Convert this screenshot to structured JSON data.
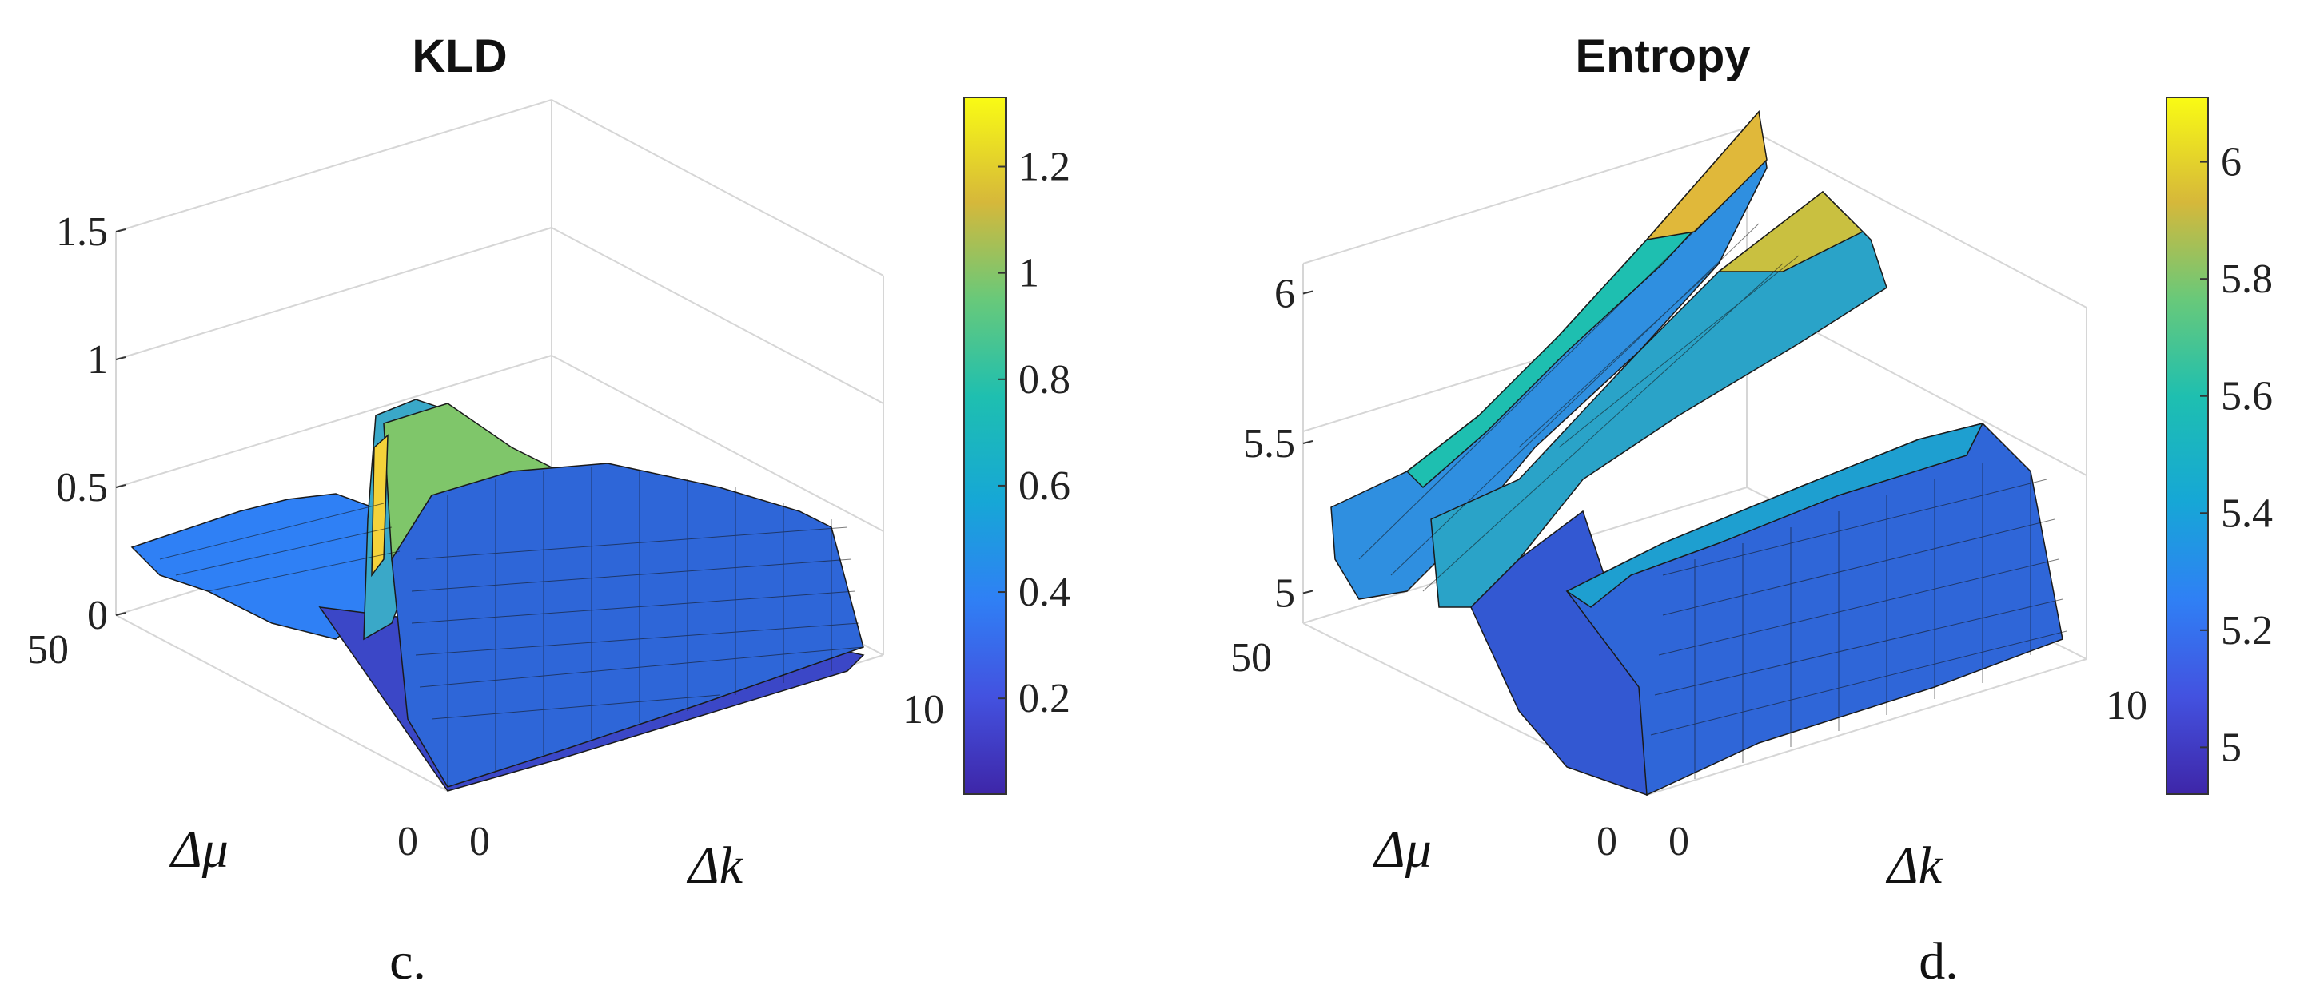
{
  "chart_data": [
    {
      "type": "surface",
      "title": "KLD",
      "xlabel": "Δk",
      "ylabel": "Δμ",
      "zlim": [
        0,
        1.5
      ],
      "z_ticks": [
        "0",
        "0.5",
        "1",
        "1.5"
      ],
      "x_ticks": [
        "0",
        "10"
      ],
      "y_ticks": [
        "0",
        "50"
      ],
      "colorbar_ticks": [
        "0.2",
        "0.4",
        "0.6",
        "0.8",
        "1",
        "1.2"
      ],
      "colorbar_range": [
        0.02,
        1.33
      ],
      "colormap": "parula",
      "grid": true,
      "caption": "c."
    },
    {
      "type": "surface",
      "title": "Entropy",
      "xlabel": "Δk",
      "ylabel": "Δμ",
      "zlim": [
        4.9,
        6.1
      ],
      "z_ticks": [
        "5",
        "5.5",
        "6"
      ],
      "x_ticks": [
        "0",
        "10"
      ],
      "y_ticks": [
        "0",
        "50"
      ],
      "colorbar_ticks": [
        "5",
        "5.2",
        "5.4",
        "5.6",
        "5.8",
        "6"
      ],
      "colorbar_range": [
        4.92,
        6.11
      ],
      "colormap": "parula",
      "grid": true,
      "caption": "d."
    }
  ]
}
